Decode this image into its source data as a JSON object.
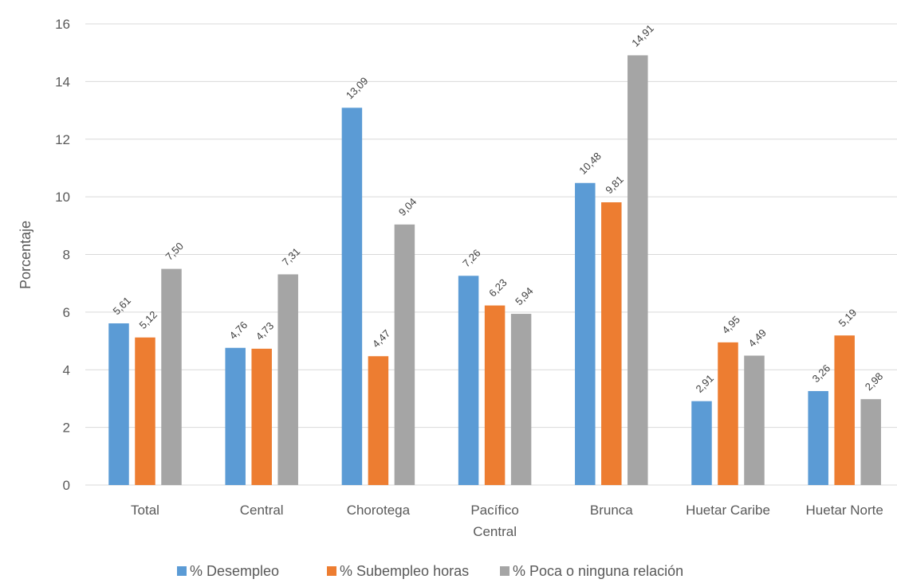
{
  "chart_data": {
    "type": "bar",
    "title": "",
    "xlabel": "",
    "ylabel": "Porcentaje",
    "ylim": [
      0,
      16
    ],
    "yticks": [
      0,
      2,
      4,
      6,
      8,
      10,
      12,
      14,
      16
    ],
    "grid": true,
    "legend_position": "bottom",
    "categories": [
      [
        "Total"
      ],
      [
        "Central"
      ],
      [
        "Chorotega"
      ],
      [
        "Pacífico",
        "Central"
      ],
      [
        "Brunca"
      ],
      [
        "Huetar Caribe"
      ],
      [
        "Huetar Norte"
      ]
    ],
    "series": [
      {
        "name": "% Desempleo",
        "color": "#5b9bd5",
        "values": [
          5.61,
          4.76,
          13.09,
          7.26,
          10.48,
          2.91,
          3.26
        ],
        "labels": [
          "5,61",
          "4,76",
          "13,09",
          "7,26",
          "10,48",
          "2,91",
          "3,26"
        ]
      },
      {
        "name": "% Subempleo horas",
        "color": "#ed7d31",
        "values": [
          5.12,
          4.73,
          4.47,
          6.23,
          9.81,
          4.95,
          5.19
        ],
        "labels": [
          "5,12",
          "4,73",
          "4,47",
          "6,23",
          "9,81",
          "4,95",
          "5,19"
        ]
      },
      {
        "name": "% Poca o ninguna relación",
        "color": "#a5a5a5",
        "values": [
          7.5,
          7.31,
          9.04,
          5.94,
          14.91,
          4.49,
          2.98
        ],
        "labels": [
          "7,50",
          "7,31",
          "9,04",
          "5,94",
          "14,91",
          "4,49",
          "2,98"
        ]
      }
    ]
  }
}
